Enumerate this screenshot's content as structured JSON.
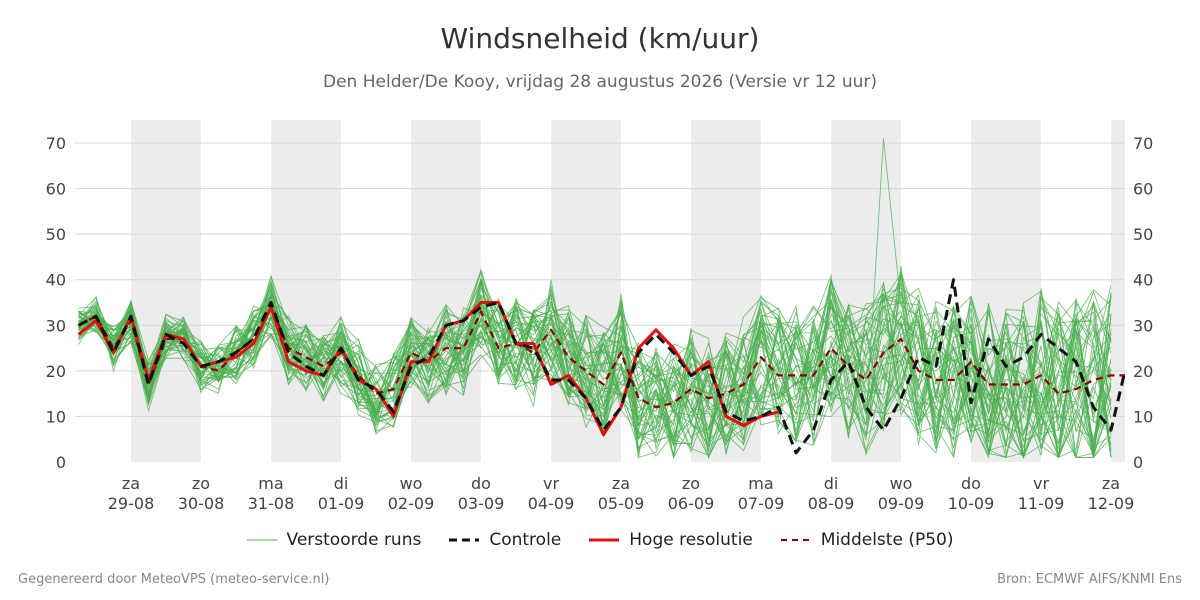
{
  "header": {
    "title": "Windsnelheid (km/uur)",
    "subtitle": "Den Helder/De Kooy, vrijdag 28 augustus 2026 (Versie vr 12 uur)"
  },
  "footer": {
    "left": "Gegenereerd door MeteoVPS (meteo-service.nl)",
    "right": "Bron: ECMWF AIFS/KNMI Ens"
  },
  "legend": [
    {
      "label": "Verstoorde runs",
      "color": "#4caf50",
      "style": "thin"
    },
    {
      "label": "Controle",
      "color": "#111111",
      "style": "dashed"
    },
    {
      "label": "Hoge resolutie",
      "color": "#e01010",
      "style": "solid"
    },
    {
      "label": "Middelste (P50)",
      "color": "#8b0000",
      "style": "dashed"
    }
  ],
  "chart_data": {
    "type": "line",
    "title": "Windsnelheid (km/uur)",
    "x_unit": "days since 28-08 00h",
    "xlim": [
      28.2,
      43.2
    ],
    "ylim": [
      0,
      75
    ],
    "yticks": [
      0,
      10,
      20,
      30,
      40,
      50,
      60,
      70
    ],
    "grid": true,
    "legend_position": "bottom",
    "x_ticks": [
      {
        "day": "za",
        "date": "29-08",
        "x": 29
      },
      {
        "day": "zo",
        "date": "30-08",
        "x": 30
      },
      {
        "day": "ma",
        "date": "31-08",
        "x": 31
      },
      {
        "day": "di",
        "date": "01-09",
        "x": 32
      },
      {
        "day": "wo",
        "date": "02-09",
        "x": 33
      },
      {
        "day": "do",
        "date": "03-09",
        "x": 34
      },
      {
        "day": "vr",
        "date": "04-09",
        "x": 35
      },
      {
        "day": "za",
        "date": "05-09",
        "x": 36
      },
      {
        "day": "zo",
        "date": "06-09",
        "x": 37
      },
      {
        "day": "ma",
        "date": "07-09",
        "x": 38
      },
      {
        "day": "di",
        "date": "08-09",
        "x": 39
      },
      {
        "day": "wo",
        "date": "09-09",
        "x": 40
      },
      {
        "day": "do",
        "date": "10-09",
        "x": 41
      },
      {
        "day": "vr",
        "date": "11-09",
        "x": 42
      },
      {
        "day": "za",
        "date": "12-09",
        "x": 43
      }
    ],
    "shaded_bands": [
      [
        29,
        30
      ],
      [
        31,
        32
      ],
      [
        33,
        34
      ],
      [
        35,
        36
      ],
      [
        37,
        38
      ],
      [
        39,
        40
      ],
      [
        41,
        42
      ],
      [
        43,
        43.2
      ]
    ],
    "series": [
      {
        "name": "Hoge resolutie",
        "color": "#e01010",
        "x": [
          28.25,
          28.5,
          28.75,
          29,
          29.25,
          29.5,
          29.75,
          30,
          30.25,
          30.5,
          30.75,
          31,
          31.25,
          31.5,
          31.75,
          32,
          32.25,
          32.5,
          32.75,
          33,
          33.25,
          33.5,
          33.75,
          34,
          34.25,
          34.5,
          34.75,
          35,
          35.25,
          35.5,
          35.75,
          36,
          36.25,
          36.5,
          36.75,
          37,
          37.25,
          37.5,
          37.75,
          38,
          38.25,
          38.5
        ],
        "values": [
          28,
          31,
          24,
          32,
          18,
          28,
          27,
          21,
          22,
          23,
          26,
          34,
          22,
          20,
          19,
          25,
          18,
          16,
          10,
          22,
          22,
          30,
          31,
          35,
          35,
          26,
          26,
          17,
          19,
          14,
          6,
          12,
          25,
          29,
          25,
          19,
          22,
          10,
          8,
          10,
          11,
          null
        ]
      },
      {
        "name": "Controle",
        "color": "#111111",
        "x": [
          28.25,
          28.5,
          28.75,
          29,
          29.25,
          29.5,
          29.75,
          30,
          30.25,
          30.5,
          30.75,
          31,
          31.25,
          31.5,
          31.75,
          32,
          32.25,
          32.5,
          32.75,
          33,
          33.25,
          33.5,
          33.75,
          34,
          34.25,
          34.5,
          34.75,
          35,
          35.25,
          35.5,
          35.75,
          36,
          36.25,
          36.5,
          36.75,
          37,
          37.25,
          37.5,
          37.75,
          38,
          38.25,
          38.5,
          38.75,
          39,
          39.25,
          39.5,
          39.75,
          40,
          40.25,
          40.5,
          40.75,
          41,
          41.25,
          41.5,
          41.75,
          42,
          42.25,
          42.5,
          42.75,
          43,
          43.2
        ],
        "values": [
          30,
          32,
          24,
          32,
          17,
          28,
          26,
          21,
          22,
          24,
          27,
          35,
          24,
          21,
          19,
          25,
          18,
          16,
          11,
          21,
          23,
          30,
          31,
          34,
          35,
          26,
          25,
          18,
          18,
          14,
          7,
          12,
          24,
          28,
          24,
          19,
          21,
          11,
          9,
          10,
          12,
          2,
          7,
          18,
          22,
          12,
          7,
          14,
          23,
          21,
          40,
          13,
          27,
          21,
          23,
          28,
          25,
          22,
          12,
          7,
          20
        ]
      },
      {
        "name": "Middelste (P50)",
        "color": "#8b0000",
        "x": [
          28.25,
          28.5,
          28.75,
          29,
          29.25,
          29.5,
          29.75,
          30,
          30.25,
          30.5,
          30.75,
          31,
          31.25,
          31.5,
          31.75,
          32,
          32.25,
          32.5,
          32.75,
          33,
          33.25,
          33.5,
          33.75,
          34,
          34.25,
          34.5,
          34.75,
          35,
          35.25,
          35.5,
          35.75,
          36,
          36.25,
          36.5,
          36.75,
          37,
          37.25,
          37.5,
          37.75,
          38,
          38.25,
          38.5,
          38.75,
          39,
          39.25,
          39.5,
          39.75,
          40,
          40.25,
          40.5,
          40.75,
          41,
          41.25,
          41.5,
          41.75,
          42,
          42.25,
          42.5,
          42.75,
          43,
          43.2
        ],
        "values": [
          30,
          32,
          25,
          31,
          17,
          27,
          27,
          21,
          20,
          24,
          27,
          34,
          25,
          23,
          21,
          24,
          19,
          15,
          16,
          24,
          22,
          25,
          25,
          33,
          25,
          26,
          24,
          29,
          23,
          20,
          17,
          24,
          14,
          12,
          13,
          16,
          14,
          15,
          17,
          23,
          19,
          19,
          19,
          25,
          21,
          18,
          24,
          27,
          20,
          18,
          18,
          22,
          17,
          17,
          17,
          19,
          15,
          16,
          18,
          19,
          19
        ]
      }
    ],
    "ensemble_members": {
      "name": "Verstoorde runs",
      "color": "#4caf50",
      "count": 50,
      "x_start": 28.25,
      "x_step": 0.25,
      "count_points": 61,
      "median_profile": [
        30,
        32,
        25,
        31,
        17,
        27,
        27,
        21,
        20,
        24,
        27,
        34,
        25,
        23,
        21,
        24,
        19,
        15,
        16,
        24,
        22,
        25,
        25,
        33,
        25,
        26,
        24,
        29,
        23,
        20,
        17,
        24,
        14,
        12,
        13,
        16,
        14,
        15,
        17,
        23,
        19,
        19,
        19,
        25,
        21,
        18,
        24,
        27,
        20,
        18,
        18,
        22,
        17,
        17,
        17,
        19,
        15,
        16,
        18,
        19,
        19
      ],
      "max_observed": 71,
      "min_observed": 1
    }
  }
}
